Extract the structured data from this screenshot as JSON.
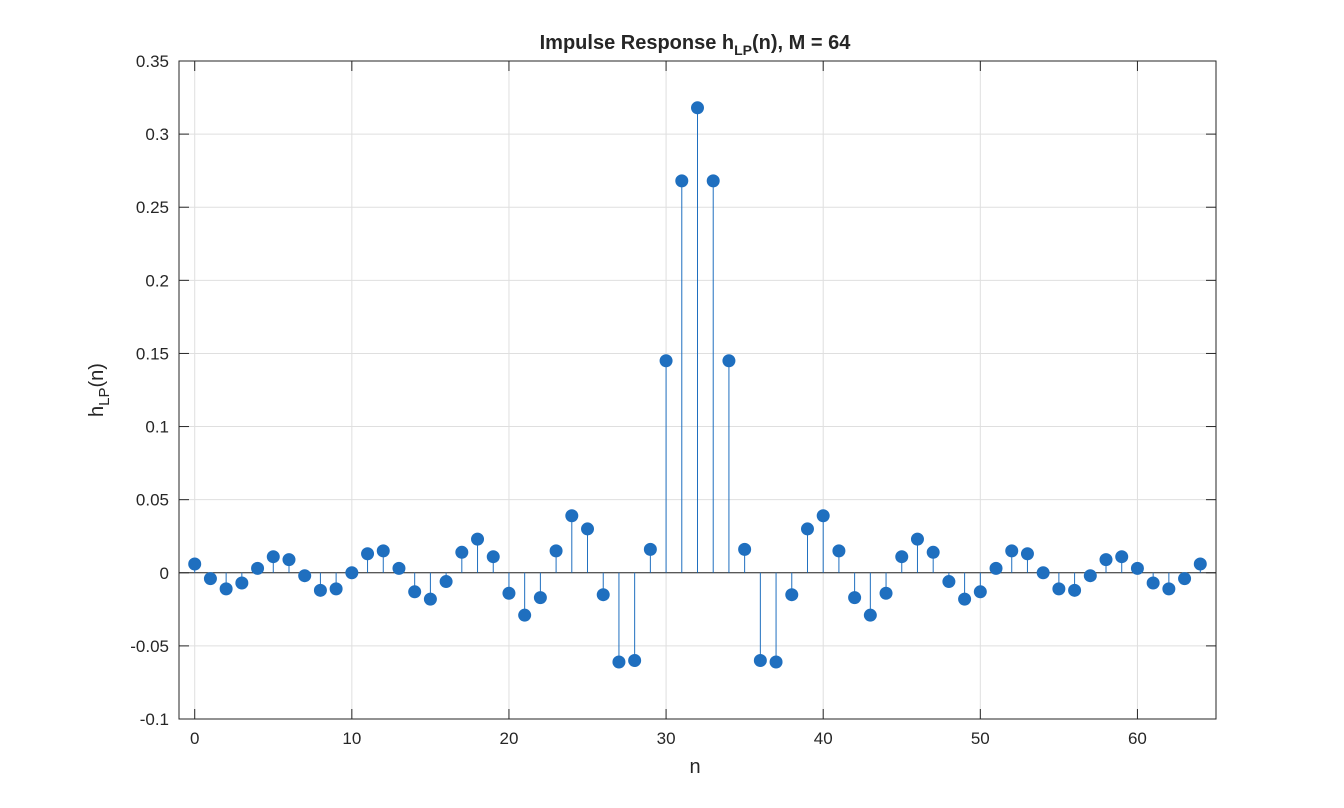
{
  "chart_data": {
    "type": "stem",
    "title_main": "Impulse  Response  h",
    "title_sub": "LP",
    "title_rest": "(n),  M  =  64",
    "xlabel": "n",
    "ylabel_main": "h",
    "ylabel_sub": "LP",
    "ylabel_rest": "(n)",
    "xlim": [
      -1,
      65
    ],
    "ylim": [
      -0.1,
      0.35
    ],
    "xticks": [
      0,
      10,
      20,
      30,
      40,
      50,
      60
    ],
    "xtick_labels": [
      "0",
      "10",
      "20",
      "30",
      "40",
      "50",
      "60"
    ],
    "yticks": [
      -0.1,
      -0.05,
      0,
      0.05,
      0.1,
      0.15,
      0.2,
      0.25,
      0.3,
      0.35
    ],
    "ytick_labels": [
      "-0.1",
      "-0.05",
      "0",
      "0.05",
      "0.1",
      "0.15",
      "0.2",
      "0.25",
      "0.3",
      "0.35"
    ],
    "grid": true,
    "color": "#1f6fbf",
    "series": [
      {
        "x": [
          0,
          1,
          2,
          3,
          4,
          5,
          6,
          7,
          8,
          9,
          10,
          11,
          12,
          13,
          14,
          15,
          16,
          17,
          18,
          19,
          20,
          21,
          22,
          23,
          24,
          25,
          26,
          27,
          28,
          29,
          30,
          31,
          32,
          33,
          34,
          35,
          36,
          37,
          38,
          39,
          40,
          41,
          42,
          43,
          44,
          45,
          46,
          47,
          48,
          49,
          50,
          51,
          52,
          53,
          54,
          55,
          56,
          57,
          58,
          59,
          60,
          61,
          62,
          63,
          64
        ],
        "values": [
          0.006,
          -0.004,
          -0.011,
          -0.007,
          0.003,
          0.011,
          0.009,
          -0.002,
          -0.012,
          -0.011,
          0.0,
          0.013,
          0.015,
          0.003,
          -0.013,
          -0.018,
          -0.006,
          0.014,
          0.023,
          0.011,
          -0.014,
          -0.029,
          -0.017,
          0.015,
          0.039,
          0.03,
          -0.015,
          -0.061,
          -0.06,
          0.016,
          0.145,
          0.268,
          0.318,
          0.268,
          0.145,
          0.016,
          -0.06,
          -0.061,
          -0.015,
          0.03,
          0.039,
          0.015,
          -0.017,
          -0.029,
          -0.014,
          0.011,
          0.023,
          0.014,
          -0.006,
          -0.018,
          -0.013,
          0.003,
          0.015,
          0.013,
          0.0,
          -0.011,
          -0.012,
          -0.002,
          0.009,
          0.011,
          0.003,
          -0.007,
          -0.011,
          -0.004,
          0.006
        ]
      }
    ]
  }
}
